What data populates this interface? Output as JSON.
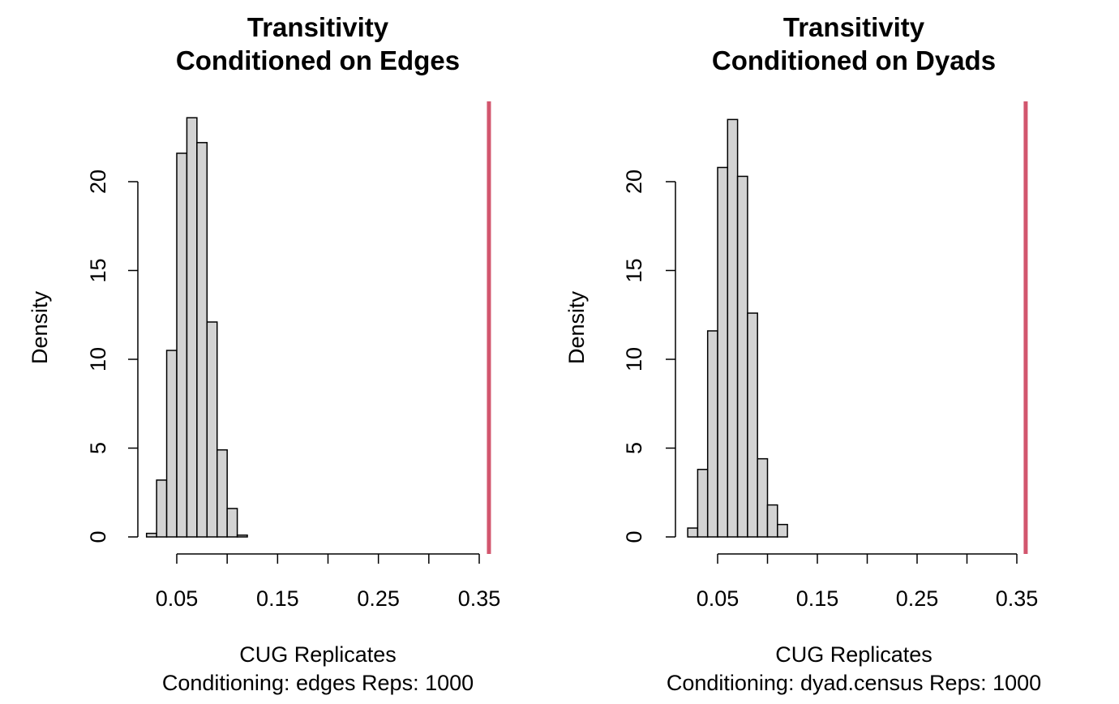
{
  "chart_data": [
    {
      "type": "bar",
      "title": [
        "Transitivity",
        "Conditioned on Edges"
      ],
      "xlabel": [
        "CUG Replicates",
        "Conditioning: edges Reps: 1000"
      ],
      "ylabel": "Density",
      "xlim": [
        0.01,
        0.36
      ],
      "ylim": [
        0,
        25
      ],
      "x_ticks": [
        0.05,
        0.1,
        0.15,
        0.2,
        0.25,
        0.3,
        0.35
      ],
      "x_tick_labels": [
        "0.05",
        "",
        "0.15",
        "",
        "0.25",
        "",
        "0.35"
      ],
      "y_ticks": [
        0,
        5,
        10,
        15,
        20
      ],
      "y_tick_labels": [
        "0",
        "5",
        "10",
        "15",
        "20"
      ],
      "bins": [
        {
          "x0": 0.02,
          "x1": 0.03,
          "density": 0.2
        },
        {
          "x0": 0.03,
          "x1": 0.04,
          "density": 3.2
        },
        {
          "x0": 0.04,
          "x1": 0.05,
          "density": 10.5
        },
        {
          "x0": 0.05,
          "x1": 0.06,
          "density": 21.6
        },
        {
          "x0": 0.06,
          "x1": 0.07,
          "density": 23.6
        },
        {
          "x0": 0.07,
          "x1": 0.08,
          "density": 22.2
        },
        {
          "x0": 0.08,
          "x1": 0.09,
          "density": 12.1
        },
        {
          "x0": 0.09,
          "x1": 0.1,
          "density": 4.9
        },
        {
          "x0": 0.1,
          "x1": 0.11,
          "density": 1.6
        },
        {
          "x0": 0.11,
          "x1": 0.12,
          "density": 0.1
        }
      ],
      "observed_value": 0.354,
      "colors": {
        "bar_fill": "#d3d3d3",
        "bar_stroke": "#000000",
        "observed_line": "#d2566e"
      },
      "grid": false
    },
    {
      "type": "bar",
      "title": [
        "Transitivity",
        "Conditioned on Dyads"
      ],
      "xlabel": [
        "CUG Replicates",
        "Conditioning: dyad.census Reps: 1000"
      ],
      "ylabel": "Density",
      "xlim": [
        0.01,
        0.36
      ],
      "ylim": [
        0,
        25
      ],
      "x_ticks": [
        0.05,
        0.1,
        0.15,
        0.2,
        0.25,
        0.3,
        0.35
      ],
      "x_tick_labels": [
        "0.05",
        "",
        "0.15",
        "",
        "0.25",
        "",
        "0.35"
      ],
      "y_ticks": [
        0,
        5,
        10,
        15,
        20
      ],
      "y_tick_labels": [
        "0",
        "5",
        "10",
        "15",
        "20"
      ],
      "bins": [
        {
          "x0": 0.02,
          "x1": 0.03,
          "density": 0.5
        },
        {
          "x0": 0.03,
          "x1": 0.04,
          "density": 3.8
        },
        {
          "x0": 0.04,
          "x1": 0.05,
          "density": 11.6
        },
        {
          "x0": 0.05,
          "x1": 0.06,
          "density": 20.8
        },
        {
          "x0": 0.06,
          "x1": 0.07,
          "density": 23.5
        },
        {
          "x0": 0.07,
          "x1": 0.08,
          "density": 20.3
        },
        {
          "x0": 0.08,
          "x1": 0.09,
          "density": 12.6
        },
        {
          "x0": 0.09,
          "x1": 0.1,
          "density": 4.4
        },
        {
          "x0": 0.1,
          "x1": 0.11,
          "density": 1.8
        },
        {
          "x0": 0.11,
          "x1": 0.12,
          "density": 0.7
        }
      ],
      "observed_value": 0.354,
      "colors": {
        "bar_fill": "#d3d3d3",
        "bar_stroke": "#000000",
        "observed_line": "#d2566e"
      },
      "grid": false
    }
  ]
}
